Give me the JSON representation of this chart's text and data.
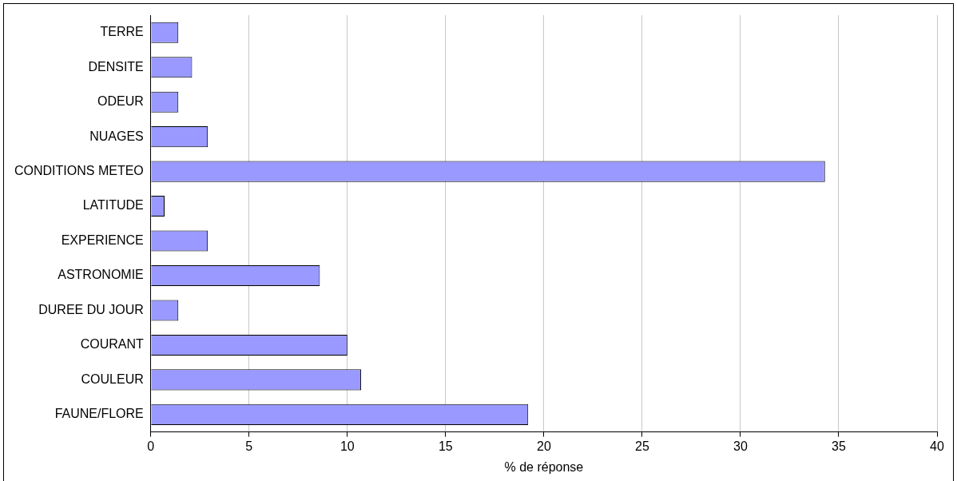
{
  "chart_data": {
    "type": "bar",
    "orientation": "horizontal",
    "xlabel": "% de réponse",
    "categories": [
      "TERRE",
      "DENSITE",
      "ODEUR",
      "NUAGES",
      "CONDITIONS METEO",
      "LATITUDE",
      "EXPERIENCE",
      "ASTRONOMIE",
      "DUREE DU JOUR",
      "COURANT",
      "COULEUR",
      "FAUNE/FLORE"
    ],
    "values": [
      1.4,
      2.1,
      1.4,
      2.9,
      34.3,
      0.7,
      2.9,
      8.6,
      1.4,
      10.0,
      10.7,
      19.2
    ],
    "color": "#9999ff",
    "xlim": [
      0,
      40
    ],
    "xticks": [
      0,
      5,
      10,
      15,
      20,
      25,
      30,
      35,
      40
    ],
    "grid": "x",
    "legend": false
  }
}
